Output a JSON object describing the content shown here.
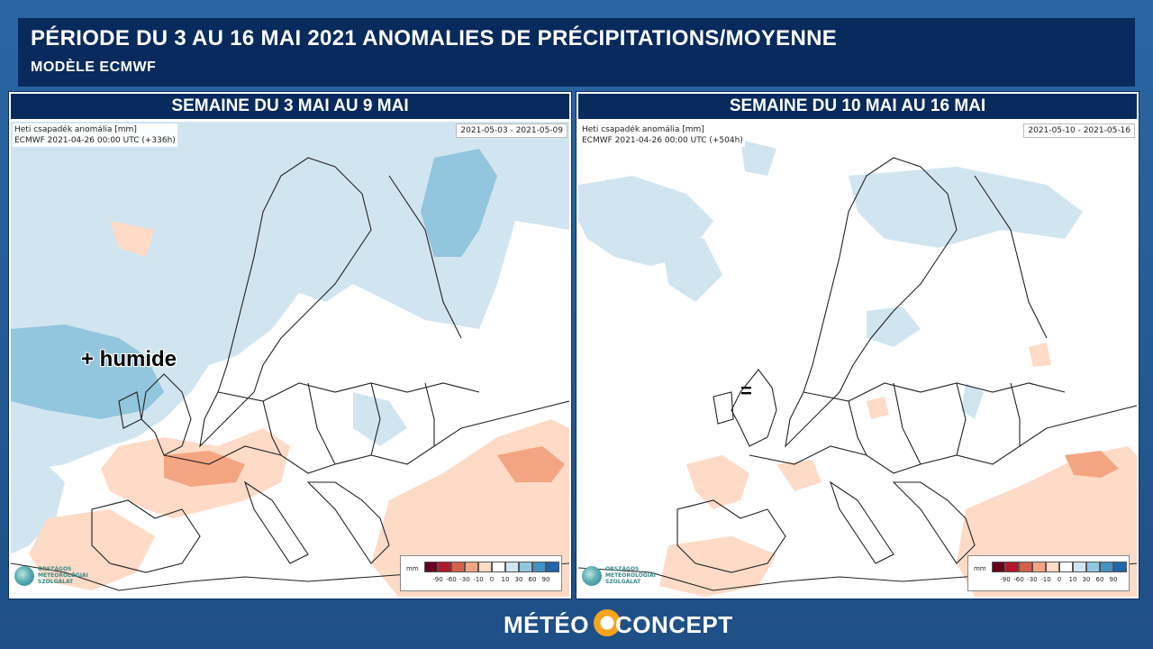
{
  "header": {
    "title": "PÉRIODE DU 3 AU 16 MAI 2021  ANOMALIES DE PRÉCIPITATIONS/MOYENNE",
    "subtitle": "MODÈLE ECMWF"
  },
  "panels": [
    {
      "title": "SEMAINE DU 3 MAI AU 9 MAI",
      "info_line1": "Heti csapadék anomália [mm]",
      "info_line2": "ECMWF 2021-04-26 00:00 UTC (+336h)",
      "date_range": "2021-05-03 - 2021-05-09",
      "annotation": "+ humide"
    },
    {
      "title": "SEMAINE DU 10 MAI AU 16 MAI",
      "info_line1": "Heti csapadék anomália [mm]",
      "info_line2": "ECMWF 2021-04-26 00:00 UTC (+504h)",
      "date_range": "2021-05-10 - 2021-05-16",
      "annotation": "="
    }
  ],
  "legend": {
    "unit": "mm",
    "ticks": [
      "-90",
      "-60",
      "-30",
      "-10",
      "0",
      "10",
      "30",
      "60",
      "90"
    ],
    "colors": [
      "#67001f",
      "#b2182b",
      "#d6604d",
      "#f4a582",
      "#fddbc7",
      "#ffffff",
      "#d1e5f0",
      "#92c5de",
      "#4393c3",
      "#2166ac",
      "#053061"
    ]
  },
  "omsz_logo": {
    "lines": [
      "ORSZÁGOS",
      "METEOROLÓGIAI",
      "SZOLGÁLAT"
    ]
  },
  "brand": {
    "part1": "MÉTÉO",
    "part2": "CONCEPT"
  }
}
